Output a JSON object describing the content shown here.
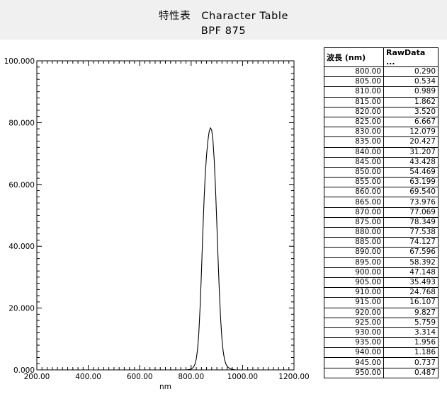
{
  "header": {
    "title_line1": "特性表　Character Table",
    "title_line2": "BPF 875"
  },
  "table": {
    "columns": [
      "波長 (nm)",
      "RawData ..."
    ],
    "rows": [
      [
        "800.00",
        "0.290"
      ],
      [
        "805.00",
        "0.534"
      ],
      [
        "810.00",
        "0.989"
      ],
      [
        "815.00",
        "1.862"
      ],
      [
        "820.00",
        "3.520"
      ],
      [
        "825.00",
        "6.667"
      ],
      [
        "830.00",
        "12.079"
      ],
      [
        "835.00",
        "20.427"
      ],
      [
        "840.00",
        "31.207"
      ],
      [
        "845.00",
        "43.428"
      ],
      [
        "850.00",
        "54.469"
      ],
      [
        "855.00",
        "63.199"
      ],
      [
        "860.00",
        "69.540"
      ],
      [
        "865.00",
        "73.976"
      ],
      [
        "870.00",
        "77.069"
      ],
      [
        "875.00",
        "78.349"
      ],
      [
        "880.00",
        "77.538"
      ],
      [
        "885.00",
        "74.127"
      ],
      [
        "890.00",
        "67.596"
      ],
      [
        "895.00",
        "58.392"
      ],
      [
        "900.00",
        "47.148"
      ],
      [
        "905.00",
        "35.493"
      ],
      [
        "910.00",
        "24.768"
      ],
      [
        "915.00",
        "16.107"
      ],
      [
        "920.00",
        "9.827"
      ],
      [
        "925.00",
        "5.759"
      ],
      [
        "930.00",
        "3.314"
      ],
      [
        "935.00",
        "1.956"
      ],
      [
        "940.00",
        "1.186"
      ],
      [
        "945.00",
        "0.737"
      ],
      [
        "950.00",
        "0.487"
      ]
    ]
  },
  "chart_data": {
    "type": "line",
    "title": "",
    "xlabel": "nm",
    "ylabel": "",
    "xlim": [
      200,
      1200
    ],
    "ylim": [
      0,
      100
    ],
    "x_ticks": [
      200,
      400,
      600,
      800,
      1000,
      1200
    ],
    "x_tick_labels": [
      "200.00",
      "400.00",
      "600.00",
      "800.00",
      "1000.00",
      "1200.00"
    ],
    "y_ticks": [
      0,
      20,
      40,
      60,
      80,
      100
    ],
    "y_tick_labels": [
      "0.000",
      "20.000",
      "40.000",
      "60.000",
      "80.000",
      "100.000"
    ],
    "grid": false,
    "line_color": "#000000",
    "series": [
      {
        "x": [
          780,
          785,
          790,
          795,
          800,
          805,
          810,
          815,
          820,
          825,
          830,
          835,
          840,
          845,
          850,
          855,
          860,
          865,
          870,
          875,
          880,
          885,
          890,
          895,
          900,
          905,
          910,
          915,
          920,
          925,
          930,
          935,
          940,
          945,
          950,
          955,
          960,
          965,
          970
        ],
        "values": [
          0.02,
          0.05,
          0.1,
          0.17,
          0.29,
          0.534,
          0.989,
          1.862,
          3.52,
          6.667,
          12.079,
          20.427,
          31.207,
          43.428,
          54.469,
          63.199,
          69.54,
          73.976,
          77.069,
          78.349,
          77.538,
          74.127,
          67.596,
          58.392,
          47.148,
          35.493,
          24.768,
          16.107,
          9.827,
          5.759,
          3.314,
          1.956,
          1.186,
          0.737,
          0.487,
          0.3,
          0.18,
          0.1,
          0.05
        ]
      }
    ]
  }
}
